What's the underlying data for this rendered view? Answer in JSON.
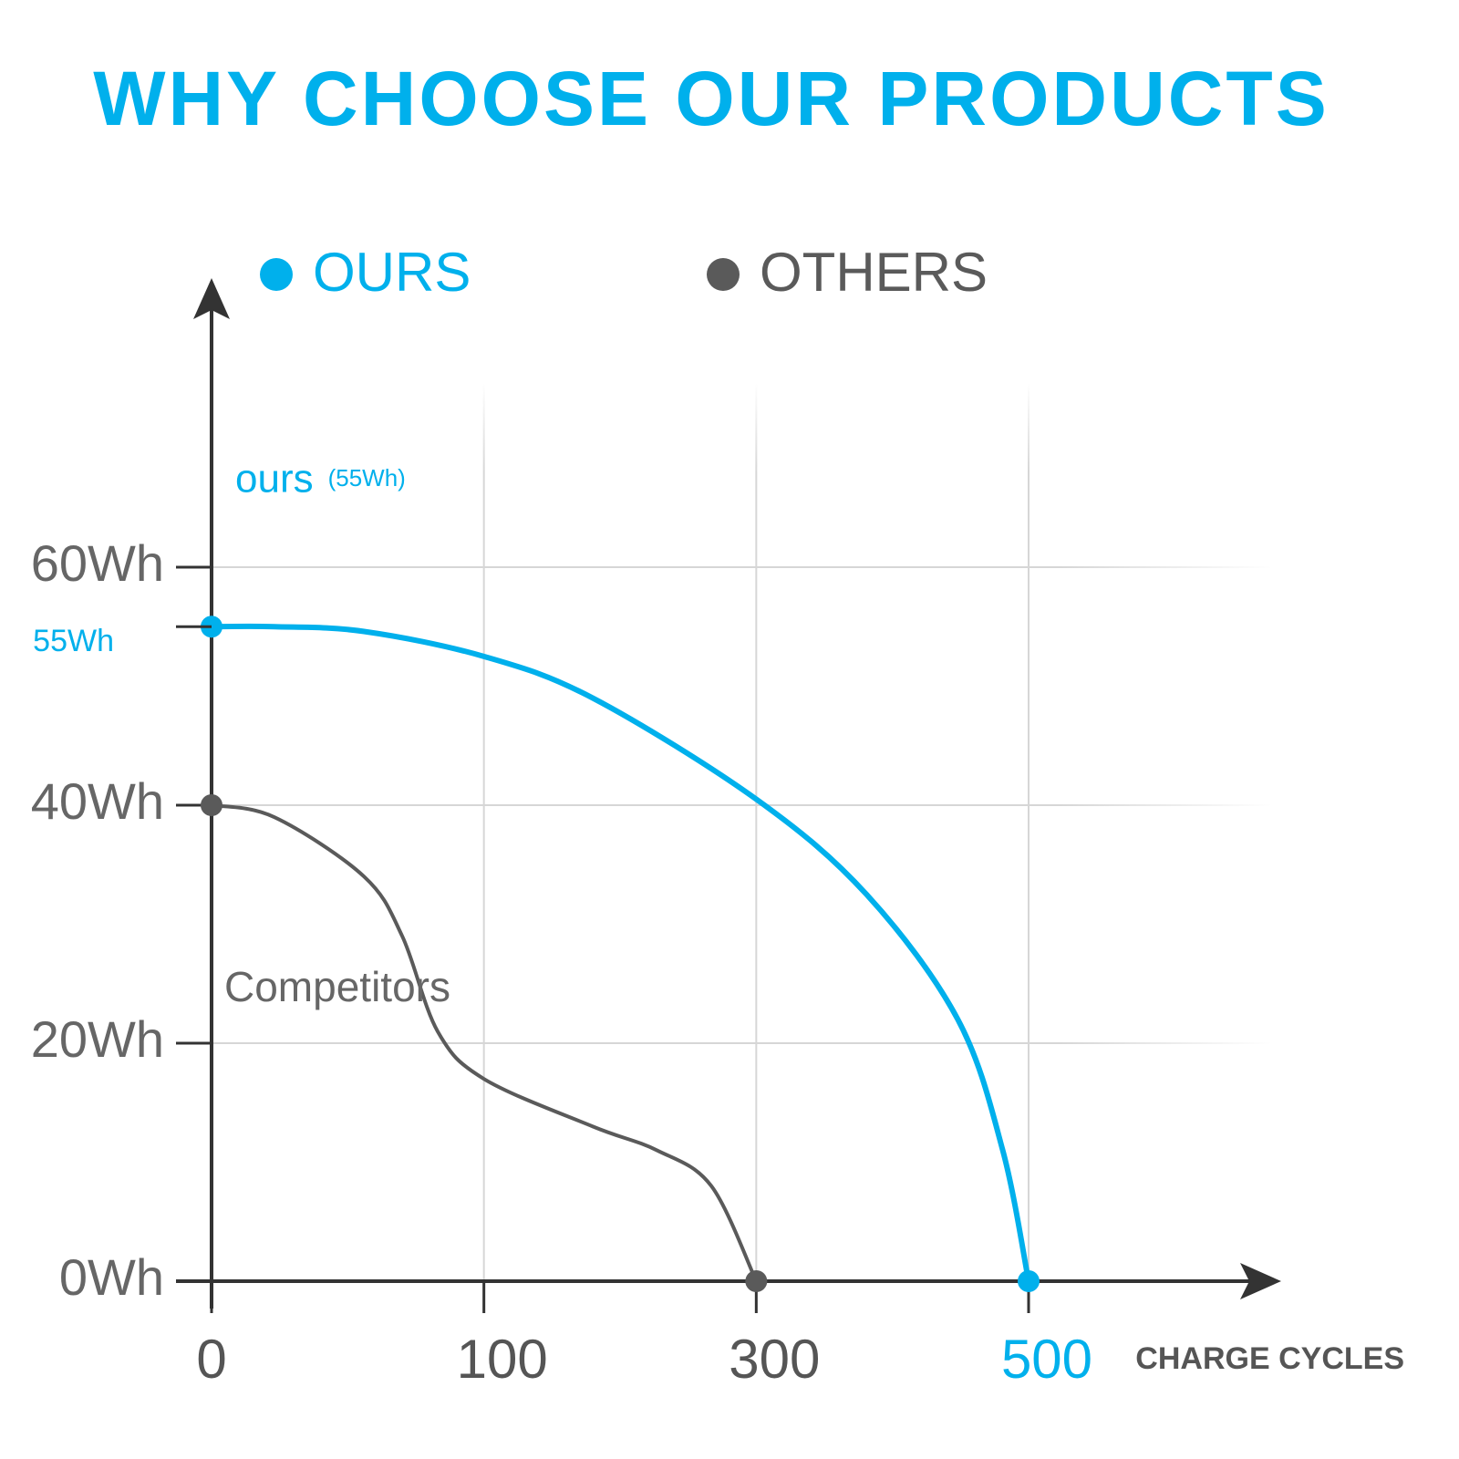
{
  "chart_data": {
    "type": "line",
    "title": "WHY CHOOSE OUR PRODUCTS",
    "x_label": "CHARGE CYCLES",
    "xscale": "tick-spaced",
    "xlim": [
      0,
      500
    ],
    "xticks": [
      0,
      100,
      300,
      500
    ],
    "ylim": [
      0,
      80
    ],
    "yticks": [
      {
        "value": 0,
        "label": "0Wh"
      },
      {
        "value": 20,
        "label": "20Wh"
      },
      {
        "value": 40,
        "label": "40Wh"
      },
      {
        "value": 60,
        "label": "60Wh"
      }
    ],
    "grid": true,
    "legend": "top",
    "series": [
      {
        "name": "OURS",
        "color": "#00b0ec",
        "x": [
          0,
          23,
          56,
          100,
          180,
          300,
          381,
          448,
          481,
          500
        ],
        "values": [
          55,
          55,
          54.6,
          52.5,
          49,
          40.5,
          32.5,
          22,
          11,
          0
        ],
        "value_labels": [
          "55Wh",
          null,
          null,
          null,
          null,
          null,
          null,
          null,
          null,
          null
        ]
      },
      {
        "name": "OTHERS",
        "color": "#5a5a5a",
        "x": [
          0,
          23,
          56,
          70,
          83,
          100,
          180,
          227,
          267,
          300
        ],
        "values": [
          40,
          39,
          34,
          29,
          21,
          17,
          13,
          11,
          8,
          0
        ]
      }
    ],
    "annotations": [
      {
        "text": "ours",
        "note": "(55Wh)",
        "color": "#00b0ec"
      },
      {
        "text": "Competitors",
        "color": "#666666"
      }
    ]
  }
}
